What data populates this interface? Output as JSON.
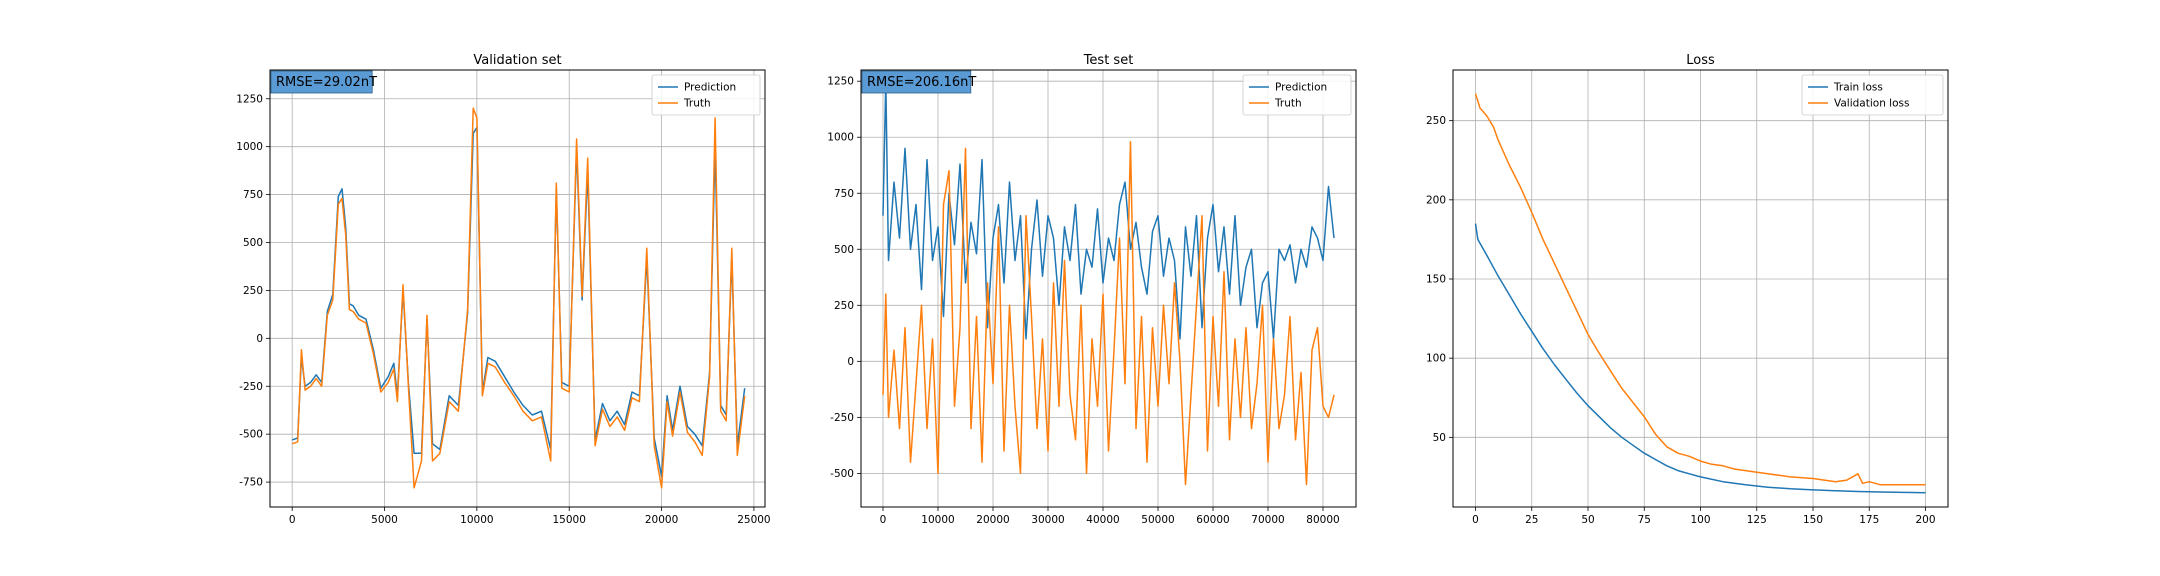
{
  "colors": {
    "prediction": "#1f77b4",
    "truth": "#ff7f0e",
    "train_loss": "#1f77b4",
    "validation_loss": "#ff7f0e",
    "grid": "#b0b0b0",
    "rmse_box": "#5b9bd5"
  },
  "chart_data": [
    {
      "type": "line",
      "title": "Validation set",
      "xlabel": "",
      "ylabel": "",
      "xlim": [
        -1200,
        25600
      ],
      "ylim": [
        -880,
        1400
      ],
      "xticks": [
        0,
        5000,
        10000,
        15000,
        20000,
        25000
      ],
      "yticks": [
        -750,
        -500,
        -250,
        0,
        250,
        500,
        750,
        1000,
        1250
      ],
      "grid": true,
      "legend_position": "upper right",
      "annotation": "RMSE=29.02nT",
      "series": [
        {
          "name": "Prediction",
          "color": "#1f77b4",
          "x": [
            0,
            300,
            500,
            700,
            1000,
            1300,
            1600,
            1900,
            2200,
            2500,
            2700,
            2900,
            3100,
            3300,
            3600,
            4000,
            4400,
            4800,
            5200,
            5500,
            5700,
            6000,
            6300,
            6600,
            7000,
            7300,
            7600,
            8000,
            8500,
            9000,
            9500,
            9800,
            10000,
            10300,
            10600,
            11000,
            11500,
            12000,
            12500,
            13000,
            13500,
            14000,
            14300,
            14600,
            15000,
            15400,
            15700,
            16000,
            16400,
            16800,
            17200,
            17600,
            18000,
            18400,
            18800,
            19200,
            19600,
            20000,
            20300,
            20600,
            21000,
            21400,
            21800,
            22200,
            22600,
            22900,
            23200,
            23500,
            23800,
            24100,
            24500
          ],
          "y": [
            -530,
            -520,
            -100,
            -250,
            -230,
            -190,
            -230,
            140,
            230,
            740,
            780,
            580,
            180,
            170,
            120,
            100,
            -60,
            -260,
            -200,
            -130,
            -300,
            250,
            -240,
            -600,
            -600,
            100,
            -550,
            -580,
            -300,
            -350,
            130,
            1070,
            1100,
            -280,
            -100,
            -120,
            -200,
            -280,
            -350,
            -400,
            -380,
            -580,
            780,
            -230,
            -250,
            990,
            200,
            870,
            -530,
            -340,
            -430,
            -380,
            -450,
            -280,
            -300,
            420,
            -520,
            -720,
            -300,
            -480,
            -250,
            -460,
            -500,
            -560,
            -180,
            1000,
            -350,
            -400,
            420,
            -560,
            -260
          ]
        },
        {
          "name": "Truth",
          "color": "#ff7f0e",
          "x": [
            0,
            300,
            500,
            700,
            1000,
            1300,
            1600,
            1900,
            2200,
            2500,
            2700,
            2900,
            3100,
            3300,
            3600,
            4000,
            4400,
            4800,
            5200,
            5500,
            5700,
            6000,
            6300,
            6600,
            7000,
            7300,
            7600,
            8000,
            8500,
            9000,
            9500,
            9800,
            10000,
            10300,
            10600,
            11000,
            11500,
            12000,
            12500,
            13000,
            13500,
            14000,
            14300,
            14600,
            15000,
            15400,
            15700,
            16000,
            16400,
            16800,
            17200,
            17600,
            18000,
            18400,
            18800,
            19200,
            19600,
            20000,
            20300,
            20600,
            21000,
            21400,
            21800,
            22200,
            22600,
            22900,
            23200,
            23500,
            23800,
            24100,
            24500
          ],
          "y": [
            -550,
            -540,
            -60,
            -270,
            -250,
            -210,
            -250,
            120,
            200,
            700,
            730,
            540,
            150,
            140,
            100,
            80,
            -80,
            -280,
            -230,
            -160,
            -330,
            280,
            -260,
            -780,
            -640,
            120,
            -640,
            -600,
            -330,
            -380,
            150,
            1200,
            1150,
            -300,
            -130,
            -150,
            -230,
            -300,
            -380,
            -430,
            -410,
            -640,
            810,
            -260,
            -280,
            1040,
            220,
            940,
            -560,
            -370,
            -460,
            -410,
            -480,
            -310,
            -330,
            470,
            -560,
            -780,
            -330,
            -510,
            -280,
            -490,
            -540,
            -610,
            -200,
            1150,
            -380,
            -430,
            470,
            -610,
            -300
          ]
        }
      ]
    },
    {
      "type": "line",
      "title": "Test set",
      "xlabel": "",
      "ylabel": "",
      "xlim": [
        -4000,
        86000
      ],
      "ylim": [
        -650,
        1300
      ],
      "xticks": [
        0,
        10000,
        20000,
        30000,
        40000,
        50000,
        60000,
        70000,
        80000
      ],
      "yticks": [
        -500,
        -250,
        0,
        250,
        500,
        750,
        1000,
        1250
      ],
      "grid": true,
      "legend_position": "upper right",
      "annotation": "RMSE=206.16nT",
      "series": [
        {
          "name": "Prediction",
          "color": "#1f77b4",
          "x": [
            0,
            500,
            1000,
            2000,
            3000,
            4000,
            5000,
            6000,
            7000,
            8000,
            9000,
            10000,
            11000,
            12000,
            13000,
            14000,
            15000,
            16000,
            17000,
            18000,
            19000,
            20000,
            21000,
            22000,
            23000,
            24000,
            25000,
            26000,
            27000,
            28000,
            29000,
            30000,
            31000,
            32000,
            33000,
            34000,
            35000,
            36000,
            37000,
            38000,
            39000,
            40000,
            41000,
            42000,
            43000,
            44000,
            45000,
            46000,
            47000,
            48000,
            49000,
            50000,
            51000,
            52000,
            53000,
            54000,
            55000,
            56000,
            57000,
            58000,
            59000,
            60000,
            61000,
            62000,
            63000,
            64000,
            65000,
            66000,
            67000,
            68000,
            69000,
            70000,
            71000,
            72000,
            73000,
            74000,
            75000,
            76000,
            77000,
            78000,
            79000,
            80000,
            81000,
            82000
          ],
          "y": [
            650,
            1250,
            450,
            800,
            550,
            950,
            500,
            700,
            320,
            900,
            450,
            600,
            200,
            750,
            520,
            880,
            350,
            620,
            480,
            900,
            150,
            550,
            700,
            350,
            800,
            450,
            650,
            100,
            500,
            720,
            380,
            650,
            550,
            250,
            600,
            450,
            700,
            300,
            500,
            420,
            680,
            350,
            550,
            450,
            700,
            800,
            500,
            620,
            420,
            300,
            580,
            650,
            380,
            550,
            450,
            100,
            600,
            380,
            650,
            150,
            550,
            700,
            400,
            600,
            300,
            650,
            250,
            420,
            500,
            150,
            350,
            400,
            100,
            500,
            450,
            520,
            350,
            500,
            420,
            600,
            550,
            450,
            780,
            550
          ]
        },
        {
          "name": "Truth",
          "color": "#ff7f0e",
          "x": [
            0,
            500,
            1000,
            2000,
            3000,
            4000,
            5000,
            6000,
            7000,
            8000,
            9000,
            10000,
            11000,
            12000,
            13000,
            14000,
            15000,
            16000,
            17000,
            18000,
            19000,
            20000,
            21000,
            22000,
            23000,
            24000,
            25000,
            26000,
            27000,
            28000,
            29000,
            30000,
            31000,
            32000,
            33000,
            34000,
            35000,
            36000,
            37000,
            38000,
            39000,
            40000,
            41000,
            42000,
            43000,
            44000,
            45000,
            46000,
            47000,
            48000,
            49000,
            50000,
            51000,
            52000,
            53000,
            54000,
            55000,
            56000,
            57000,
            58000,
            59000,
            60000,
            61000,
            62000,
            63000,
            64000,
            65000,
            66000,
            67000,
            68000,
            69000,
            70000,
            71000,
            72000,
            73000,
            74000,
            75000,
            76000,
            77000,
            78000,
            79000,
            80000,
            81000,
            82000
          ],
          "y": [
            -150,
            300,
            -250,
            50,
            -300,
            150,
            -450,
            -100,
            250,
            -300,
            100,
            -500,
            700,
            850,
            -200,
            150,
            950,
            -300,
            200,
            -450,
            350,
            -100,
            600,
            -400,
            250,
            -200,
            -500,
            650,
            200,
            -300,
            100,
            -400,
            350,
            -200,
            450,
            -150,
            -350,
            250,
            -500,
            100,
            -200,
            300,
            -400,
            50,
            550,
            -100,
            980,
            -300,
            200,
            -450,
            150,
            -200,
            250,
            -100,
            350,
            0,
            -550,
            -150,
            250,
            650,
            -400,
            200,
            -200,
            400,
            -350,
            100,
            -250,
            150,
            -300,
            -100,
            250,
            -450,
            100,
            -300,
            -150,
            200,
            -350,
            -50,
            -550,
            50,
            150,
            -200,
            -250,
            -150
          ]
        }
      ]
    },
    {
      "type": "line",
      "title": "Loss",
      "xlabel": "",
      "ylabel": "",
      "xlim": [
        -10,
        210
      ],
      "ylim": [
        6,
        282
      ],
      "xticks": [
        0,
        25,
        50,
        75,
        100,
        125,
        150,
        175,
        200
      ],
      "yticks": [
        50,
        100,
        150,
        200,
        250
      ],
      "grid": true,
      "legend_position": "upper right",
      "series": [
        {
          "name": "Train loss",
          "color": "#1f77b4",
          "x": [
            0,
            1,
            5,
            10,
            15,
            20,
            25,
            30,
            35,
            40,
            45,
            50,
            55,
            60,
            65,
            70,
            75,
            80,
            85,
            90,
            95,
            100,
            110,
            120,
            130,
            140,
            150,
            160,
            170,
            180,
            190,
            200
          ],
          "y": [
            185,
            175,
            165,
            152,
            140,
            128,
            117,
            106,
            96,
            87,
            78,
            70,
            63,
            56,
            50,
            45,
            40,
            36,
            32,
            29,
            27,
            25,
            22,
            20,
            18.5,
            17.5,
            16.8,
            16.3,
            15.8,
            15.5,
            15.2,
            15
          ]
        },
        {
          "name": "Validation loss",
          "color": "#ff7f0e",
          "x": [
            0,
            2,
            5,
            8,
            10,
            15,
            20,
            25,
            30,
            35,
            40,
            45,
            50,
            55,
            60,
            65,
            70,
            75,
            80,
            85,
            90,
            95,
            100,
            105,
            110,
            115,
            120,
            125,
            130,
            140,
            150,
            160,
            165,
            170,
            172,
            175,
            180,
            190,
            200
          ],
          "y": [
            267,
            258,
            253,
            246,
            238,
            222,
            208,
            192,
            175,
            160,
            145,
            130,
            115,
            103,
            92,
            81,
            72,
            63,
            52,
            44,
            40,
            38,
            35,
            33,
            32,
            30,
            29,
            28,
            27,
            25,
            24,
            22,
            23,
            27,
            21,
            22,
            20,
            20,
            20
          ]
        }
      ]
    }
  ]
}
